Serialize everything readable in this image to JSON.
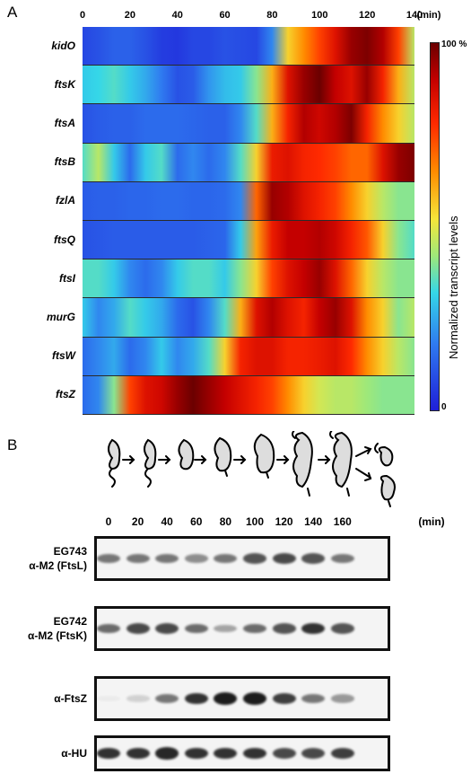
{
  "panelA": {
    "letter": "A",
    "time_ticks": [
      "0",
      "20",
      "40",
      "60",
      "80",
      "100",
      "120",
      "140"
    ],
    "time_unit": "(min)",
    "colorbar": {
      "top": "100 %",
      "bottom": "0",
      "title": "Normalized transcript levels"
    },
    "genes": [
      {
        "name": "kidO",
        "profile": [
          0.08,
          0.1,
          0.13,
          0.13,
          0.1,
          0.06,
          0.05,
          0.08,
          0.08,
          0.1,
          0.09,
          0.08,
          0.2,
          0.55,
          0.65,
          0.75,
          0.85,
          0.95,
          0.98,
          0.92,
          0.75,
          0.45
        ]
      },
      {
        "name": "ftsK",
        "profile": [
          0.3,
          0.32,
          0.35,
          0.3,
          0.25,
          0.18,
          0.1,
          0.12,
          0.22,
          0.28,
          0.3,
          0.4,
          0.6,
          0.85,
          0.95,
          1.0,
          0.9,
          0.85,
          0.95,
          0.8,
          0.6,
          0.45
        ]
      },
      {
        "name": "ftsA",
        "profile": [
          0.1,
          0.12,
          0.13,
          0.13,
          0.15,
          0.15,
          0.15,
          0.14,
          0.13,
          0.13,
          0.2,
          0.35,
          0.6,
          0.8,
          0.92,
          0.88,
          0.92,
          0.98,
          0.8,
          0.65,
          0.55,
          0.45
        ]
      },
      {
        "name": "ftsB",
        "profile": [
          0.35,
          0.45,
          0.3,
          0.15,
          0.3,
          0.35,
          0.15,
          0.2,
          0.15,
          0.2,
          0.35,
          0.55,
          0.82,
          0.85,
          0.8,
          0.78,
          0.75,
          0.7,
          0.7,
          0.85,
          0.95,
          0.98
        ]
      },
      {
        "name": "fzlA",
        "profile": [
          0.12,
          0.13,
          0.13,
          0.14,
          0.14,
          0.15,
          0.15,
          0.14,
          0.14,
          0.15,
          0.2,
          0.7,
          0.95,
          0.92,
          0.85,
          0.8,
          0.75,
          0.65,
          0.55,
          0.45,
          0.4,
          0.4
        ]
      },
      {
        "name": "ftsQ",
        "profile": [
          0.1,
          0.11,
          0.12,
          0.12,
          0.12,
          0.12,
          0.12,
          0.12,
          0.13,
          0.14,
          0.3,
          0.62,
          0.82,
          0.9,
          0.9,
          0.92,
          0.88,
          0.8,
          0.72,
          0.55,
          0.4,
          0.35
        ]
      },
      {
        "name": "ftsI",
        "profile": [
          0.35,
          0.35,
          0.3,
          0.2,
          0.15,
          0.2,
          0.3,
          0.35,
          0.35,
          0.3,
          0.4,
          0.55,
          0.75,
          0.85,
          0.9,
          0.95,
          0.85,
          0.7,
          0.55,
          0.45,
          0.4,
          0.4
        ]
      },
      {
        "name": "murG",
        "profile": [
          0.3,
          0.2,
          0.25,
          0.35,
          0.3,
          0.25,
          0.15,
          0.1,
          0.2,
          0.35,
          0.6,
          0.85,
          0.92,
          0.85,
          0.8,
          0.9,
          0.95,
          0.85,
          0.65,
          0.55,
          0.4,
          0.45
        ]
      },
      {
        "name": "ftsW",
        "profile": [
          0.15,
          0.2,
          0.25,
          0.15,
          0.2,
          0.3,
          0.2,
          0.25,
          0.35,
          0.55,
          0.8,
          0.85,
          0.85,
          0.8,
          0.8,
          0.82,
          0.85,
          0.78,
          0.65,
          0.55,
          0.45,
          0.4
        ]
      },
      {
        "name": "ftsZ",
        "profile": [
          0.15,
          0.2,
          0.4,
          0.75,
          0.85,
          0.88,
          0.95,
          1.0,
          0.95,
          0.9,
          0.85,
          0.8,
          0.75,
          0.65,
          0.55,
          0.48,
          0.45,
          0.45,
          0.42,
          0.4,
          0.4,
          0.4
        ]
      }
    ]
  },
  "panelB": {
    "letter": "B",
    "lane_ticks": [
      "0",
      "20",
      "40",
      "60",
      "80",
      "100",
      "120",
      "140",
      "160"
    ],
    "time_unit": "(min)",
    "blots": [
      {
        "label_line1": "EG743",
        "label_line2": "α-M2 (FtsL)",
        "intensities": [
          0.55,
          0.55,
          0.55,
          0.45,
          0.55,
          0.7,
          0.75,
          0.7,
          0.55
        ]
      },
      {
        "label_line1": "EG742",
        "label_line2": "α-M2 (FtsK)",
        "intensities": [
          0.6,
          0.75,
          0.75,
          0.6,
          0.35,
          0.6,
          0.7,
          0.85,
          0.7
        ]
      },
      {
        "label_line1": "α-FtsZ",
        "label_line2": "",
        "intensities": [
          0.0,
          0.15,
          0.55,
          0.85,
          0.95,
          0.95,
          0.8,
          0.55,
          0.4
        ]
      },
      {
        "label_line1": "α-HU",
        "label_line2": "",
        "intensities": [
          0.85,
          0.85,
          0.9,
          0.85,
          0.85,
          0.85,
          0.75,
          0.75,
          0.8
        ]
      }
    ]
  },
  "colors": {
    "low": "#1f1fd8",
    "mid": "#e8e83a",
    "high": "#6b0000"
  }
}
